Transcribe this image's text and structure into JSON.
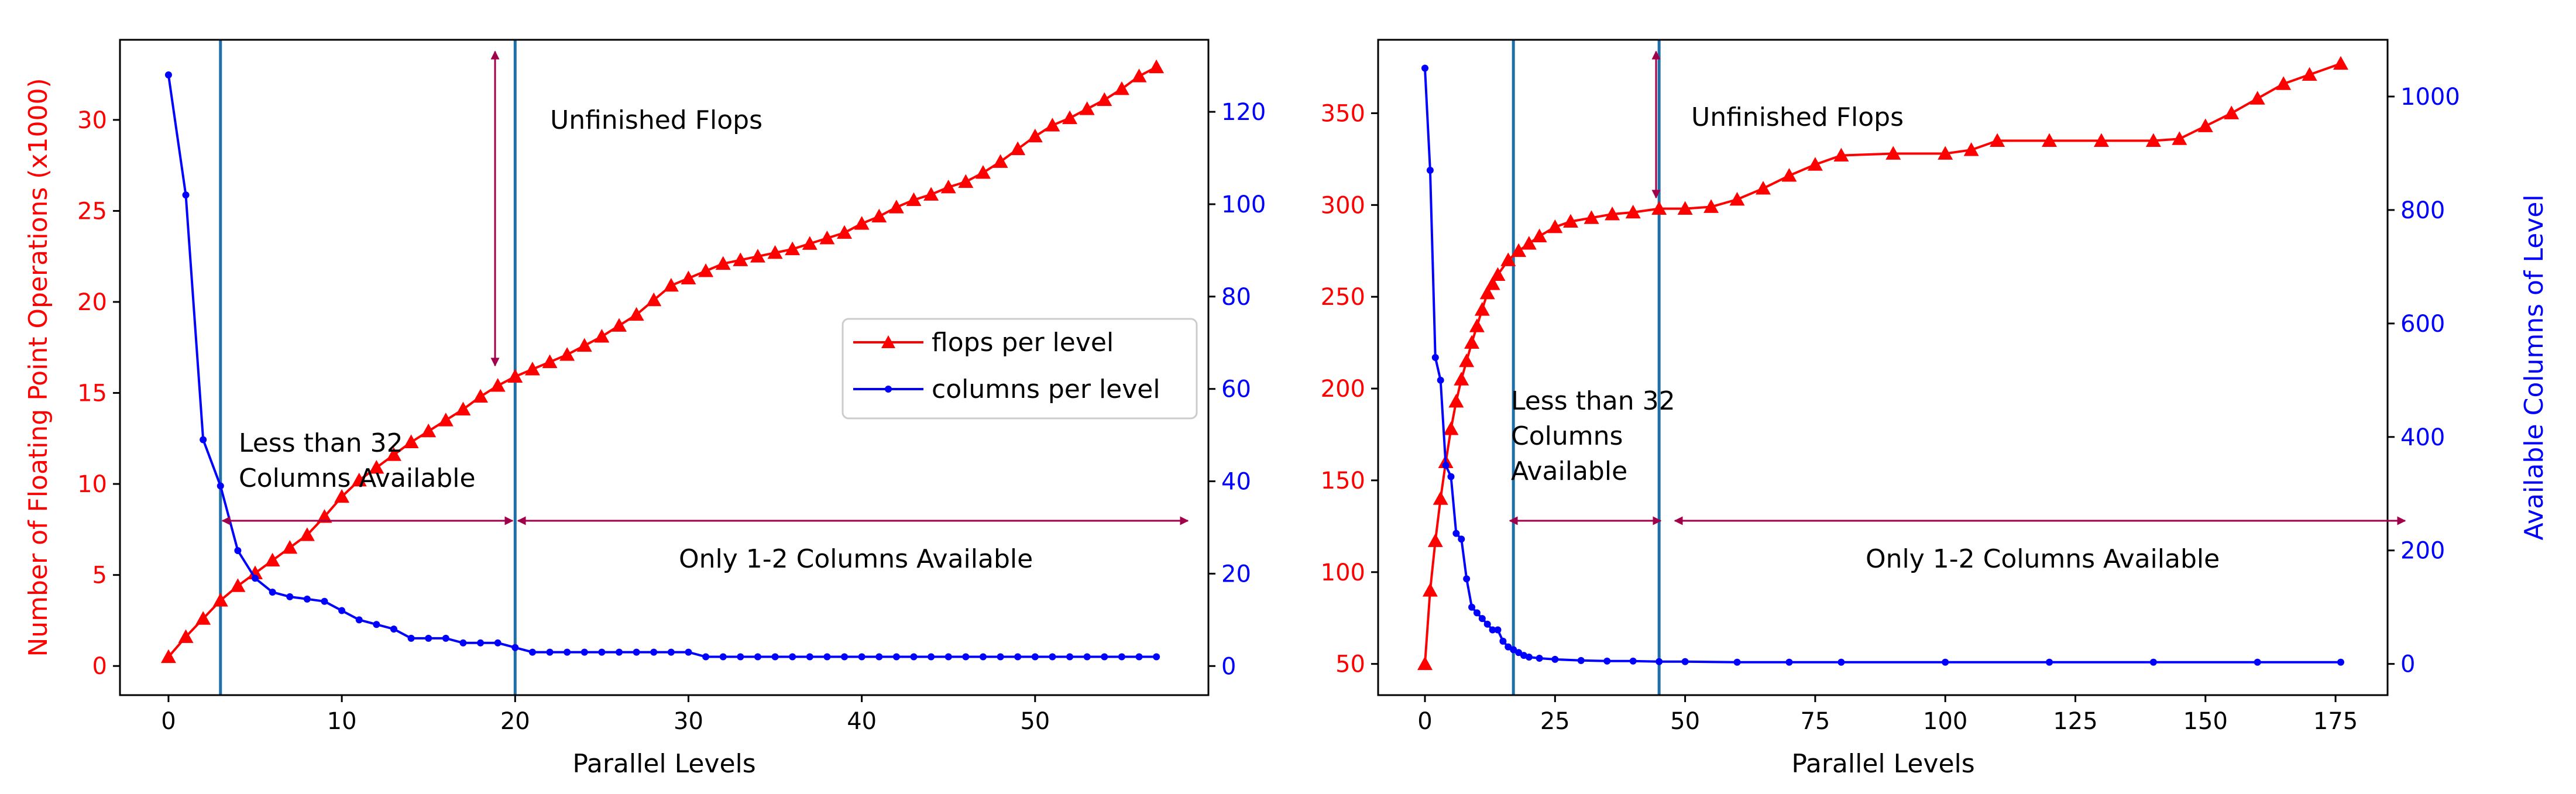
{
  "colors": {
    "flops": "#ff0000",
    "columns": "#0000ff",
    "threshold_line": "#1f6fa8",
    "annotation_arrow": "#a0004a"
  },
  "chart_data": [
    {
      "type": "line",
      "xlabel": "Parallel Levels",
      "ylabel_left": "Number of Floating Point Operations (x1000)",
      "ylabel_right": "",
      "xlim": [
        -2.8,
        60
      ],
      "ylim_left": [
        -1.6,
        34.4
      ],
      "ylim_right": [
        -6.3,
        135.6
      ],
      "xticks": [
        "0",
        "10",
        "20",
        "30",
        "40",
        "50"
      ],
      "yticks_left": [
        "0",
        "5",
        "10",
        "15",
        "20",
        "25",
        "30"
      ],
      "yticks_right": [
        "0",
        "20",
        "40",
        "60",
        "80",
        "100",
        "120"
      ],
      "legend": {
        "placement": "center-right",
        "entries": [
          "flops per level",
          "columns per level"
        ]
      },
      "vlines": [
        3,
        20
      ],
      "annotations": {
        "unfinished": "Unfinished Flops",
        "less_line1": "Less than 32",
        "less_line2": "Columns Available",
        "only": "Only 1-2 Columns Available"
      },
      "series": [
        {
          "name": "flops per level",
          "axis": "left",
          "marker": "triangle",
          "x": [
            0,
            1,
            2,
            3,
            4,
            5,
            6,
            7,
            8,
            9,
            10,
            11,
            12,
            13,
            14,
            15,
            16,
            17,
            18,
            19,
            20,
            21,
            22,
            23,
            24,
            25,
            26,
            27,
            28,
            29,
            30,
            31,
            32,
            33,
            34,
            35,
            36,
            37,
            38,
            39,
            40,
            41,
            42,
            43,
            44,
            45,
            46,
            47,
            48,
            49,
            50,
            51,
            52,
            53,
            54,
            55,
            56,
            57
          ],
          "y": [
            0.5,
            1.6,
            2.6,
            3.6,
            4.4,
            5.1,
            5.8,
            6.5,
            7.2,
            8.2,
            9.3,
            10.2,
            10.9,
            11.6,
            12.3,
            12.9,
            13.5,
            14.1,
            14.8,
            15.4,
            15.9,
            16.3,
            16.7,
            17.1,
            17.6,
            18.1,
            18.7,
            19.3,
            20.1,
            20.9,
            21.3,
            21.7,
            22.1,
            22.3,
            22.5,
            22.7,
            22.9,
            23.2,
            23.5,
            23.8,
            24.3,
            24.7,
            25.2,
            25.6,
            25.9,
            26.3,
            26.6,
            27.1,
            27.7,
            28.4,
            29.1,
            29.7,
            30.1,
            30.6,
            31.1,
            31.7,
            32.4,
            32.9
          ]
        },
        {
          "name": "columns per level",
          "axis": "right",
          "marker": "dot",
          "x": [
            0,
            1,
            2,
            3,
            4,
            5,
            6,
            7,
            8,
            9,
            10,
            11,
            12,
            13,
            14,
            15,
            16,
            17,
            18,
            19,
            20,
            21,
            22,
            23,
            24,
            25,
            26,
            27,
            28,
            29,
            30,
            31,
            32,
            33,
            34,
            35,
            36,
            37,
            38,
            39,
            40,
            41,
            42,
            43,
            44,
            45,
            46,
            47,
            48,
            49,
            50,
            51,
            52,
            53,
            54,
            55,
            56,
            57
          ],
          "y": [
            128,
            102,
            49,
            39,
            25,
            19,
            16,
            15,
            14.5,
            14,
            12,
            10,
            9,
            8,
            6,
            6,
            6,
            5,
            5,
            5,
            4,
            3,
            3,
            3,
            3,
            3,
            3,
            3,
            3,
            3,
            3,
            2,
            2,
            2,
            2,
            2,
            2,
            2,
            2,
            2,
            2,
            2,
            2,
            2,
            2,
            2,
            2,
            2,
            2,
            2,
            2,
            2,
            2,
            2,
            2,
            2,
            2,
            2
          ]
        }
      ]
    },
    {
      "type": "line",
      "xlabel": "Parallel Levels",
      "ylabel_left": "",
      "ylabel_right": "Available Columns of Level",
      "xlim": [
        -9,
        185
      ],
      "ylim_left": [
        33,
        390
      ],
      "ylim_right": [
        -55,
        1100
      ],
      "xticks": [
        "0",
        "25",
        "50",
        "75",
        "100",
        "125",
        "150",
        "175"
      ],
      "yticks_left": [
        "50",
        "100",
        "150",
        "200",
        "250",
        "300",
        "350"
      ],
      "yticks_right": [
        "0",
        "200",
        "400",
        "600",
        "800",
        "1000"
      ],
      "vlines": [
        17,
        45
      ],
      "annotations": {
        "unfinished": "Unfinished Flops",
        "less_line1": "Less than 32",
        "less_line2": "Columns",
        "less_line3": "Available",
        "only": "Only 1-2 Columns Available"
      },
      "series": [
        {
          "name": "",
          "axis": "left",
          "marker": "triangle",
          "x": [
            0,
            1,
            2,
            3,
            4,
            5,
            6,
            7,
            8,
            9,
            10,
            11,
            12,
            13,
            14,
            16,
            18,
            20,
            22,
            25,
            28,
            32,
            36,
            40,
            45,
            50,
            55,
            60,
            65,
            70,
            75,
            80,
            90,
            100,
            105,
            110,
            120,
            130,
            140,
            145,
            150,
            155,
            160,
            165,
            170,
            176
          ],
          "y": [
            50,
            90,
            117,
            140,
            160,
            178,
            193,
            205,
            215,
            225,
            234,
            243,
            252,
            257,
            262,
            270,
            275,
            279,
            283,
            288,
            291,
            293,
            295,
            296,
            298,
            298,
            299,
            303,
            309,
            316,
            322,
            327,
            328,
            328,
            330,
            335,
            335,
            335,
            335,
            336,
            343,
            350,
            358,
            366,
            371,
            377
          ]
        },
        {
          "name": "",
          "axis": "right",
          "marker": "dot",
          "x": [
            0,
            1,
            2,
            3,
            4,
            5,
            6,
            7,
            8,
            9,
            10,
            11,
            12,
            13,
            14,
            15,
            16,
            17,
            18,
            19,
            20,
            22,
            25,
            30,
            35,
            40,
            45,
            50,
            60,
            70,
            80,
            100,
            120,
            140,
            160,
            176
          ],
          "y": [
            1050,
            870,
            540,
            500,
            350,
            330,
            230,
            220,
            150,
            100,
            90,
            80,
            70,
            60,
            60,
            40,
            30,
            25,
            20,
            15,
            12,
            10,
            8,
            6,
            5,
            5,
            4,
            4,
            3,
            3,
            3,
            3,
            3,
            3,
            3,
            3
          ]
        }
      ]
    }
  ]
}
